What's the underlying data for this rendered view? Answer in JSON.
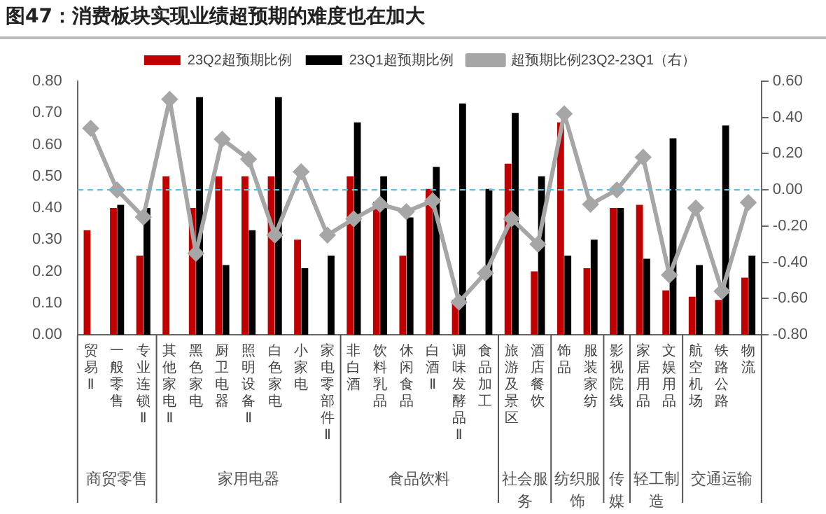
{
  "chart_data": {
    "type": "bar",
    "title": "图47：消费板块实现业绩超预期的难度也在加大",
    "categories": [
      "贸易Ⅱ",
      "一般零售",
      "专业连锁Ⅱ",
      "其他家电Ⅱ",
      "黑色家电",
      "厨卫电器",
      "照明设备Ⅱ",
      "白色家电",
      "小家电",
      "家电零部件Ⅱ",
      "非白酒",
      "饮料乳品",
      "休闲食品",
      "白酒Ⅱ",
      "调味发酵品Ⅱ",
      "食品加工",
      "旅游及景区",
      "酒店餐饮",
      "饰品",
      "服装家纺",
      "影视院线",
      "家居用品",
      "文娱用品",
      "航空机场",
      "铁路公路",
      "物流"
    ],
    "series": [
      {
        "name": "23Q2超预期比例",
        "color": "#c00000",
        "values": [
          0.33,
          0.4,
          0.25,
          0.5,
          0.4,
          0.5,
          0.5,
          0.5,
          0.3,
          null,
          0.5,
          0.42,
          0.25,
          0.46,
          0.11,
          null,
          0.54,
          0.2,
          0.67,
          0.21,
          0.4,
          0.41,
          0.14,
          0.12,
          0.11,
          0.18
        ]
      },
      {
        "name": "23Q1超预期比例",
        "color": "#000000",
        "values": [
          null,
          0.41,
          0.4,
          null,
          0.75,
          0.22,
          0.33,
          0.75,
          0.21,
          0.25,
          0.67,
          0.5,
          0.37,
          0.53,
          0.73,
          0.46,
          0.7,
          0.5,
          0.25,
          0.3,
          0.4,
          0.24,
          0.62,
          0.22,
          0.66,
          0.25
        ]
      },
      {
        "name": "超预期比例23Q2-23Q1（右）",
        "type": "line",
        "axis": "y2",
        "color": "#a6a6a6",
        "marker": "diamond",
        "values": [
          0.34,
          0.0,
          -0.15,
          0.5,
          -0.35,
          0.28,
          0.17,
          -0.25,
          0.1,
          -0.25,
          -0.16,
          -0.08,
          -0.12,
          -0.06,
          -0.62,
          -0.46,
          -0.16,
          -0.3,
          0.42,
          -0.08,
          0.0,
          0.18,
          -0.47,
          -0.1,
          -0.56,
          -0.07
        ]
      }
    ],
    "ylim": [
      0,
      0.8
    ],
    "yticks": [
      {
        "value": 0,
        "label": "0.00"
      },
      {
        "value": 0.1,
        "label": "0.10"
      },
      {
        "value": 0.2,
        "label": "0.20"
      },
      {
        "value": 0.3,
        "label": "0.30"
      },
      {
        "value": 0.4,
        "label": "0.40"
      },
      {
        "value": 0.5,
        "label": "0.50"
      },
      {
        "value": 0.6,
        "label": "0.60"
      },
      {
        "value": 0.7,
        "label": "0.70"
      },
      {
        "value": 0.8,
        "label": "0.80"
      }
    ],
    "y2lim": [
      -0.8,
      0.6
    ],
    "y2ticks": [
      {
        "value": -0.8,
        "label": "-0.80"
      },
      {
        "value": -0.6,
        "label": "-0.60"
      },
      {
        "value": -0.4,
        "label": "-0.40"
      },
      {
        "value": -0.2,
        "label": "-0.20"
      },
      {
        "value": 0,
        "label": "0.00"
      },
      {
        "value": 0.2,
        "label": "0.20"
      },
      {
        "value": 0.4,
        "label": "0.40"
      },
      {
        "value": 0.6,
        "label": "0.60"
      }
    ],
    "ref_lines": [
      {
        "axis": "y2",
        "value": 0,
        "color": "#5bc0eb",
        "line_style": "dashed"
      }
    ],
    "annotations": [
      "商贸零售",
      "家用电器",
      "食品饮料",
      "社会服务",
      "纺织服饰",
      "传媒",
      "轻工制造",
      "交通运输"
    ],
    "grid": false,
    "legend": "top"
  }
}
